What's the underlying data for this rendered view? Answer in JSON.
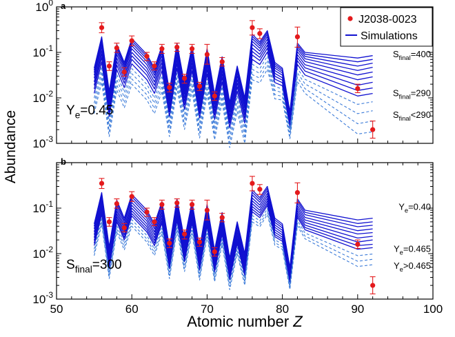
{
  "chart_data": [
    {
      "panel_label": "a",
      "type": "line",
      "xlabel": "",
      "ylabel": "",
      "xlim": [
        50,
        100
      ],
      "ylim": [
        0.001,
        1
      ],
      "yscale": "log",
      "grid": false,
      "x_ticks": [
        "50",
        "60",
        "70",
        "80",
        "90",
        "100"
      ],
      "y_ticks": [
        {
          "base": "10",
          "exp": "0"
        },
        {
          "base": "10",
          "exp": "-1"
        },
        {
          "base": "10",
          "exp": "-2"
        },
        {
          "base": "10",
          "exp": "-3"
        }
      ],
      "condition": {
        "main": "Y",
        "sub": "e",
        "rest": "=0.45"
      },
      "legend": {
        "placement": "top-right",
        "observed": "J2038-0023",
        "simulation": "Simulations"
      },
      "annotations": [
        {
          "main": "S",
          "sub": "final",
          "rest": "=400",
          "y": 0.09
        },
        {
          "main": "S",
          "sub": "final",
          "rest": "=290",
          "y": 0.0125
        },
        {
          "main": "S",
          "sub": "final",
          "rest": "<290",
          "y": 0.0042
        }
      ],
      "observed": {
        "name": "J2038-0023",
        "points": [
          {
            "x": 56,
            "y": 0.35,
            "err_lo": 0.27,
            "err_hi": 0.45
          },
          {
            "x": 57,
            "y": 0.05,
            "err_lo": 0.04,
            "err_hi": 0.062
          },
          {
            "x": 58,
            "y": 0.125,
            "err_lo": 0.1,
            "err_hi": 0.16
          },
          {
            "x": 59,
            "y": 0.037,
            "err_lo": 0.03,
            "err_hi": 0.046
          },
          {
            "x": 60,
            "y": 0.18,
            "err_lo": 0.14,
            "err_hi": 0.23
          },
          {
            "x": 62,
            "y": 0.082,
            "err_lo": 0.066,
            "err_hi": 0.1
          },
          {
            "x": 63,
            "y": 0.05,
            "err_lo": 0.041,
            "err_hi": 0.062
          },
          {
            "x": 64,
            "y": 0.12,
            "err_lo": 0.095,
            "err_hi": 0.15
          },
          {
            "x": 65,
            "y": 0.017,
            "err_lo": 0.0135,
            "err_hi": 0.021
          },
          {
            "x": 66,
            "y": 0.13,
            "err_lo": 0.105,
            "err_hi": 0.16
          },
          {
            "x": 67,
            "y": 0.027,
            "err_lo": 0.021,
            "err_hi": 0.033
          },
          {
            "x": 68,
            "y": 0.12,
            "err_lo": 0.095,
            "err_hi": 0.15
          },
          {
            "x": 69,
            "y": 0.018,
            "err_lo": 0.0145,
            "err_hi": 0.022
          },
          {
            "x": 70,
            "y": 0.09,
            "err_lo": 0.055,
            "err_hi": 0.15
          },
          {
            "x": 71,
            "y": 0.011,
            "err_lo": 0.0088,
            "err_hi": 0.0135
          },
          {
            "x": 72,
            "y": 0.062,
            "err_lo": 0.05,
            "err_hi": 0.077
          },
          {
            "x": 76,
            "y": 0.35,
            "err_lo": 0.24,
            "err_hi": 0.5
          },
          {
            "x": 77,
            "y": 0.26,
            "err_lo": 0.2,
            "err_hi": 0.33
          },
          {
            "x": 82,
            "y": 0.22,
            "err_lo": 0.13,
            "err_hi": 0.36
          },
          {
            "x": 90,
            "y": 0.016,
            "err_lo": 0.013,
            "err_hi": 0.02
          },
          {
            "x": 92,
            "y": 0.002,
            "err_lo": 0.0013,
            "err_hi": 0.0031
          }
        ]
      },
      "simulation": {
        "name": "Simulations",
        "x": [
          55,
          56,
          57,
          58,
          59,
          60,
          62,
          63,
          64,
          65,
          66,
          67,
          68,
          69,
          70,
          71,
          72,
          73,
          74,
          75,
          76,
          77,
          78,
          79,
          80,
          81,
          82,
          83,
          90,
          92
        ],
        "base": [
          0.045,
          0.22,
          0.014,
          0.15,
          0.06,
          0.2,
          0.09,
          0.045,
          0.14,
          0.014,
          0.16,
          0.02,
          0.14,
          0.013,
          0.12,
          0.012,
          0.08,
          0.008,
          0.05,
          0.01,
          0.25,
          0.17,
          0.3,
          0.06,
          0.045,
          0.005,
          0.16,
          0.1
        ],
        "tail_fraction": [
          1,
          1,
          1,
          1,
          1,
          1,
          1,
          1,
          1,
          1,
          1,
          1,
          1,
          1,
          1,
          1,
          1,
          1,
          1,
          1,
          1,
          0.9,
          0.85,
          0.8,
          0.7,
          0.6,
          0.85,
          0.9
        ],
        "tail_sets": [
          {
            "style": "solid",
            "v83": 0.1,
            "v90": 0.075,
            "v92": 0.085
          },
          {
            "style": "solid",
            "v83": 0.09,
            "v90": 0.062,
            "v92": 0.07
          },
          {
            "style": "solid",
            "v83": 0.08,
            "v90": 0.05,
            "v92": 0.058
          },
          {
            "style": "solid",
            "v83": 0.07,
            "v90": 0.04,
            "v92": 0.047
          },
          {
            "style": "solid",
            "v83": 0.06,
            "v90": 0.032,
            "v92": 0.037
          },
          {
            "style": "solid",
            "v83": 0.05,
            "v90": 0.025,
            "v92": 0.029
          },
          {
            "style": "solid",
            "v83": 0.042,
            "v90": 0.019,
            "v92": 0.022
          },
          {
            "style": "solid",
            "v83": 0.035,
            "v90": 0.0145,
            "v92": 0.0165
          },
          {
            "style": "solid",
            "v83": 0.028,
            "v90": 0.011,
            "v92": 0.0125
          },
          {
            "style": "dashed",
            "v83": 0.022,
            "v90": 0.0072,
            "v92": 0.0082
          },
          {
            "style": "dashed",
            "v83": 0.017,
            "v90": 0.0045,
            "v92": 0.0052
          },
          {
            "style": "dashed",
            "v83": 0.013,
            "v90": 0.0027,
            "v92": 0.0031
          },
          {
            "style": "dashed",
            "v83": 0.01,
            "v90": 0.0016,
            "v92": 0.0018
          }
        ]
      }
    },
    {
      "panel_label": "b",
      "type": "line",
      "xlabel": "Atomic number Z",
      "ylabel": "",
      "xlim": [
        50,
        100
      ],
      "ylim": [
        0.001,
        1
      ],
      "yscale": "log",
      "grid": false,
      "x_ticks": [
        "50",
        "60",
        "70",
        "80",
        "90",
        "100"
      ],
      "y_ticks": [
        {
          "base": "10",
          "exp": "-1"
        },
        {
          "base": "10",
          "exp": "-2"
        },
        {
          "base": "10",
          "exp": "-3"
        }
      ],
      "condition": {
        "main": "S",
        "sub": "final",
        "rest": "=300"
      },
      "annotations": [
        {
          "main": "Y",
          "sub": "e",
          "rest": "=0.40",
          "y": 0.105
        },
        {
          "main": "Y",
          "sub": "e",
          "rest": "=0.465",
          "y": 0.0125
        },
        {
          "main": "Y",
          "sub": "e",
          "rest": ">0.465",
          "y": 0.0053
        }
      ],
      "observed": {
        "name": "J2038-0023",
        "points": [
          {
            "x": 56,
            "y": 0.35,
            "err_lo": 0.27,
            "err_hi": 0.45
          },
          {
            "x": 57,
            "y": 0.05,
            "err_lo": 0.04,
            "err_hi": 0.062
          },
          {
            "x": 58,
            "y": 0.125,
            "err_lo": 0.1,
            "err_hi": 0.16
          },
          {
            "x": 59,
            "y": 0.037,
            "err_lo": 0.03,
            "err_hi": 0.046
          },
          {
            "x": 60,
            "y": 0.18,
            "err_lo": 0.14,
            "err_hi": 0.23
          },
          {
            "x": 62,
            "y": 0.082,
            "err_lo": 0.066,
            "err_hi": 0.1
          },
          {
            "x": 63,
            "y": 0.05,
            "err_lo": 0.041,
            "err_hi": 0.062
          },
          {
            "x": 64,
            "y": 0.12,
            "err_lo": 0.095,
            "err_hi": 0.15
          },
          {
            "x": 65,
            "y": 0.017,
            "err_lo": 0.0135,
            "err_hi": 0.021
          },
          {
            "x": 66,
            "y": 0.13,
            "err_lo": 0.105,
            "err_hi": 0.16
          },
          {
            "x": 67,
            "y": 0.027,
            "err_lo": 0.021,
            "err_hi": 0.033
          },
          {
            "x": 68,
            "y": 0.12,
            "err_lo": 0.095,
            "err_hi": 0.15
          },
          {
            "x": 69,
            "y": 0.018,
            "err_lo": 0.0145,
            "err_hi": 0.022
          },
          {
            "x": 70,
            "y": 0.09,
            "err_lo": 0.055,
            "err_hi": 0.15
          },
          {
            "x": 71,
            "y": 0.011,
            "err_lo": 0.0088,
            "err_hi": 0.0135
          },
          {
            "x": 72,
            "y": 0.062,
            "err_lo": 0.05,
            "err_hi": 0.077
          },
          {
            "x": 76,
            "y": 0.35,
            "err_lo": 0.24,
            "err_hi": 0.5
          },
          {
            "x": 77,
            "y": 0.26,
            "err_lo": 0.2,
            "err_hi": 0.33
          },
          {
            "x": 82,
            "y": 0.22,
            "err_lo": 0.13,
            "err_hi": 0.36
          },
          {
            "x": 90,
            "y": 0.016,
            "err_lo": 0.013,
            "err_hi": 0.02
          },
          {
            "x": 92,
            "y": 0.002,
            "err_lo": 0.0013,
            "err_hi": 0.0031
          }
        ]
      },
      "simulation": {
        "name": "Simulations",
        "x": [
          55,
          56,
          57,
          58,
          59,
          60,
          62,
          63,
          64,
          65,
          66,
          67,
          68,
          69,
          70,
          71,
          72,
          73,
          74,
          75,
          76,
          77,
          78,
          79,
          80,
          81,
          82,
          83,
          90,
          92
        ],
        "base": [
          0.045,
          0.22,
          0.014,
          0.15,
          0.06,
          0.2,
          0.09,
          0.045,
          0.14,
          0.014,
          0.16,
          0.02,
          0.14,
          0.013,
          0.12,
          0.012,
          0.08,
          0.008,
          0.05,
          0.01,
          0.25,
          0.17,
          0.3,
          0.06,
          0.045,
          0.005,
          0.16,
          0.09
        ],
        "tail_fraction": [
          1,
          1,
          1,
          1,
          1,
          1,
          1,
          1,
          1,
          1,
          1,
          1,
          1,
          1,
          1,
          1,
          1,
          1,
          1,
          1,
          1,
          0.92,
          0.88,
          0.85,
          0.8,
          0.7,
          0.85,
          0.9
        ],
        "tail_sets": [
          {
            "style": "solid",
            "v83": 0.09,
            "v90": 0.055,
            "v92": 0.06
          },
          {
            "style": "solid",
            "v83": 0.08,
            "v90": 0.046,
            "v92": 0.05
          },
          {
            "style": "solid",
            "v83": 0.07,
            "v90": 0.039,
            "v92": 0.042
          },
          {
            "style": "solid",
            "v83": 0.06,
            "v90": 0.032,
            "v92": 0.035
          },
          {
            "style": "solid",
            "v83": 0.052,
            "v90": 0.027,
            "v92": 0.029
          },
          {
            "style": "solid",
            "v83": 0.045,
            "v90": 0.022,
            "v92": 0.024
          },
          {
            "style": "solid",
            "v83": 0.039,
            "v90": 0.018,
            "v92": 0.02
          },
          {
            "style": "solid",
            "v83": 0.034,
            "v90": 0.015,
            "v92": 0.016
          },
          {
            "style": "solid",
            "v83": 0.03,
            "v90": 0.0125,
            "v92": 0.0135
          },
          {
            "style": "dashed",
            "v83": 0.025,
            "v90": 0.009,
            "v92": 0.0098
          },
          {
            "style": "dashed",
            "v83": 0.021,
            "v90": 0.0068,
            "v92": 0.0075
          },
          {
            "style": "dashed",
            "v83": 0.018,
            "v90": 0.0052,
            "v92": 0.0057
          }
        ]
      }
    }
  ],
  "figure": {
    "ylabel": "Abundance",
    "xlabel_text": "Atomic number ",
    "xlabel_var": "Z"
  },
  "colors": {
    "observed": "#e41a1c",
    "simulation_solid": "#1010d0",
    "simulation_dashed": "#3a7ad8"
  }
}
